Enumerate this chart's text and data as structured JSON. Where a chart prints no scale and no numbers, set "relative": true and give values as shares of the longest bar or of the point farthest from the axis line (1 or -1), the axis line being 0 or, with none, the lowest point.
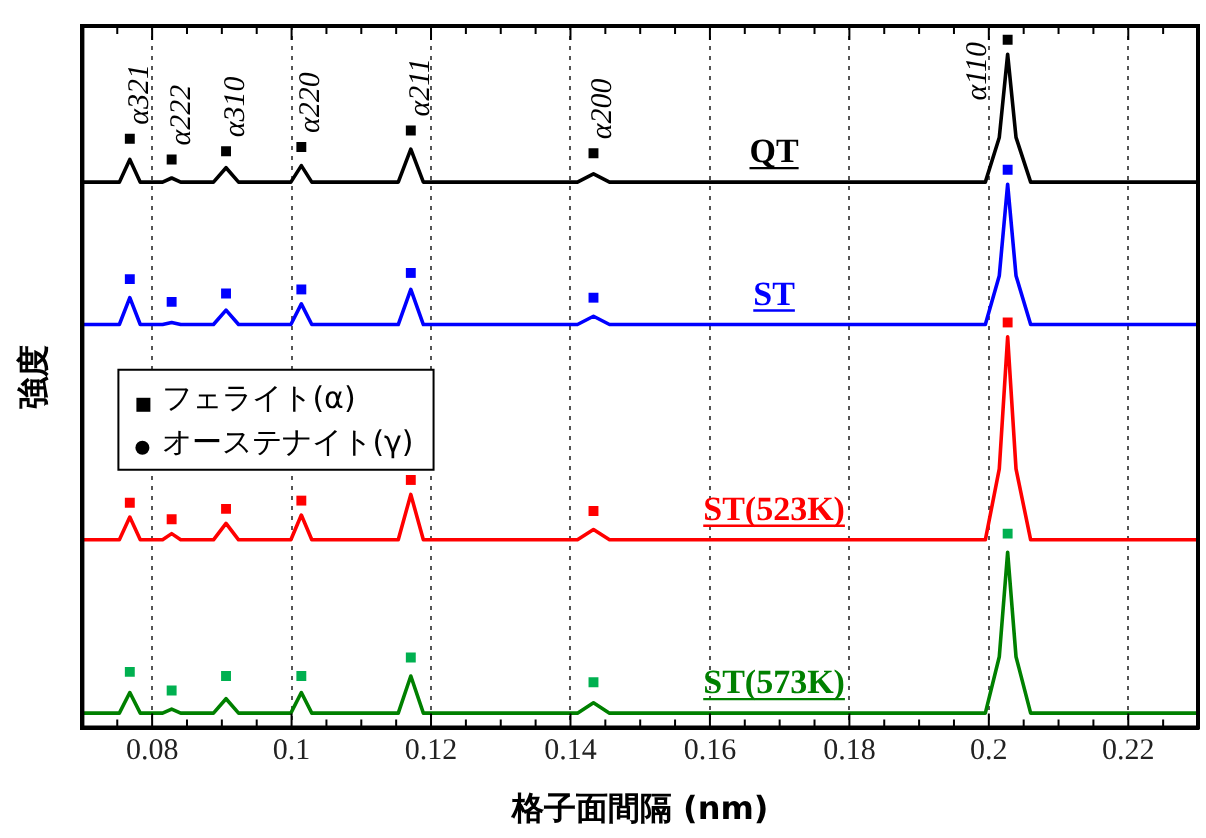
{
  "chart_data": {
    "type": "line",
    "xlabel": "格子面間隔 (nm)",
    "ylabel": "強度",
    "relative": true,
    "xlim": [
      0.07,
      0.23
    ],
    "xticks": [
      0.08,
      0.1,
      0.12,
      0.14,
      0.16,
      0.18,
      0.2,
      0.22
    ],
    "tick_labels": "x",
    "grid": "x",
    "legend": "left",
    "marker": "none",
    "line_style": "solid",
    "x": [
      0.07,
      0.0753,
      0.0768,
      0.0783,
      0.0815,
      0.0828,
      0.0841,
      0.0888,
      0.0906,
      0.0924,
      0.0999,
      0.1014,
      0.1029,
      0.1153,
      0.1171,
      0.1189,
      0.141,
      0.1433,
      0.1456,
      0.1995,
      0.2015,
      0.2027,
      0.2039,
      0.206,
      0.23
    ],
    "series": [
      {
        "name": "QT",
        "color": "#000000",
        "values": [
          0.793,
          0.793,
          0.826,
          0.793,
          0.793,
          0.799,
          0.793,
          0.793,
          0.814,
          0.793,
          0.793,
          0.817,
          0.793,
          0.793,
          0.841,
          0.793,
          0.793,
          0.805,
          0.793,
          0.793,
          0.858,
          0.979,
          0.858,
          0.793,
          0.793
        ]
      },
      {
        "name": "ST",
        "color": "#0000ff",
        "values": [
          0.586,
          0.586,
          0.625,
          0.586,
          0.586,
          0.589,
          0.586,
          0.586,
          0.607,
          0.586,
          0.586,
          0.616,
          0.586,
          0.586,
          0.637,
          0.586,
          0.586,
          0.598,
          0.586,
          0.586,
          0.657,
          0.79,
          0.657,
          0.586,
          0.586
        ]
      },
      {
        "name": "ST(523K)",
        "color": "#ff0000",
        "values": [
          0.273,
          0.273,
          0.306,
          0.273,
          0.273,
          0.282,
          0.273,
          0.273,
          0.297,
          0.273,
          0.273,
          0.309,
          0.273,
          0.273,
          0.339,
          0.273,
          0.273,
          0.288,
          0.273,
          0.273,
          0.376,
          0.568,
          0.376,
          0.273,
          0.273
        ]
      },
      {
        "name": "ST(573K)",
        "color": "#008000",
        "values": [
          0.021,
          0.021,
          0.051,
          0.021,
          0.021,
          0.027,
          0.021,
          0.021,
          0.042,
          0.021,
          0.021,
          0.051,
          0.021,
          0.021,
          0.075,
          0.021,
          0.021,
          0.036,
          0.021,
          0.021,
          0.103,
          0.255,
          0.103,
          0.021,
          0.021
        ]
      },
      {
        "name": "フェライト(α)",
        "type": "scatter",
        "marker": "square",
        "color": "#000000",
        "x": [
          0.0768,
          0.0828,
          0.0906,
          0.1014,
          0.1171,
          0.1433,
          0.2027,
          0.0768,
          0.0828,
          0.0906,
          0.1014,
          0.1171,
          0.1433,
          0.2027,
          0.0768,
          0.0828,
          0.0906,
          0.1014,
          0.1171,
          0.1433,
          0.2027,
          0.0768,
          0.0828,
          0.0906,
          0.1014,
          0.1171,
          0.1433,
          0.2027
        ],
        "values": [
          0.856,
          0.826,
          0.838,
          0.844,
          0.868,
          0.835,
          1,
          0.652,
          0.619,
          0.631,
          0.637,
          0.661,
          0.625,
          0.811,
          0.327,
          0.303,
          0.318,
          0.33,
          0.36,
          0.315,
          0.589,
          0.081,
          0.054,
          0.075,
          0.075,
          0.102,
          0.066,
          0.282
        ],
        "colors": [
          "#000000",
          "#000000",
          "#000000",
          "#000000",
          "#000000",
          "#000000",
          "#000000",
          "#0000ff",
          "#0000ff",
          "#0000ff",
          "#0000ff",
          "#0000ff",
          "#0000ff",
          "#0000ff",
          "#ff0000",
          "#ff0000",
          "#ff0000",
          "#ff0000",
          "#ff0000",
          "#ff0000",
          "#ff0000",
          "#00b050",
          "#00b050",
          "#00b050",
          "#00b050",
          "#00b050",
          "#00b050",
          "#00b050"
        ]
      },
      {
        "name": "オーステナイト(γ)",
        "type": "scatter",
        "marker": "circle",
        "color": "#000000",
        "values": [
          null,
          null,
          null,
          null,
          null,
          null,
          null,
          null,
          null,
          null,
          null,
          null,
          null,
          null,
          null,
          null,
          null,
          null,
          null,
          null,
          null,
          null,
          null,
          null,
          null
        ]
      }
    ],
    "annotations": [
      {
        "text": "α321",
        "x": 0.0768,
        "y": 0.856
      },
      {
        "text": "α222",
        "x": 0.0828,
        "y": 0.826
      },
      {
        "text": "α310",
        "x": 0.0906,
        "y": 0.838
      },
      {
        "text": "α220",
        "x": 0.1014,
        "y": 0.844
      },
      {
        "text": "α211",
        "x": 0.1171,
        "y": 0.868
      },
      {
        "text": "α200",
        "x": 0.1433,
        "y": 0.835
      },
      {
        "text": "α110",
        "x": 0.2027,
        "y": 1
      }
    ]
  }
}
